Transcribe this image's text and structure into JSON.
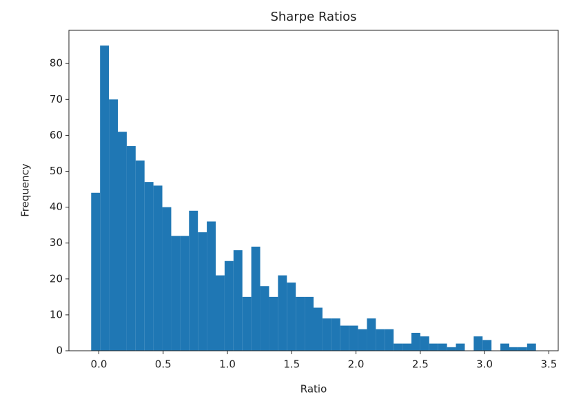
{
  "chart_data": {
    "type": "histogram",
    "title": "Sharpe Ratios",
    "x_label": "Ratio",
    "y_label": "Frequency",
    "color": "#1f77b4",
    "bins": [
      -0.06,
      0.0092,
      0.0784,
      0.1476,
      0.2168,
      0.286,
      0.3552,
      0.4244,
      0.4936,
      0.5628,
      0.632,
      0.7012,
      0.7704,
      0.8396,
      0.9088,
      0.978,
      1.0472,
      1.1164,
      1.1856,
      1.2548,
      1.324,
      1.3932,
      1.4624,
      1.5316,
      1.6008,
      1.67,
      1.7392,
      1.8084,
      1.8776,
      1.9468,
      2.016,
      2.0852,
      2.1544,
      2.2236,
      2.2928,
      2.362,
      2.4312,
      2.5004,
      2.5696,
      2.6388,
      2.708,
      2.7772,
      2.8464,
      2.9156,
      2.9848,
      3.054,
      3.1232,
      3.1924,
      3.2616,
      3.3308,
      3.4
    ],
    "values": [
      44,
      85,
      70,
      61,
      57,
      53,
      47,
      46,
      40,
      32,
      32,
      39,
      33,
      36,
      21,
      25,
      28,
      15,
      29,
      18,
      15,
      21,
      19,
      15,
      15,
      12,
      9,
      9,
      7,
      7,
      6,
      9,
      6,
      6,
      2,
      2,
      5,
      4,
      2,
      2,
      1,
      2,
      0,
      4,
      3,
      0,
      2,
      1,
      1,
      2
    ],
    "xlim": [
      -0.233,
      3.573
    ],
    "ylim": [
      0,
      89.25
    ],
    "xticks": [
      {
        "value": 0,
        "label": "0.0"
      },
      {
        "value": 0.5,
        "label": "0.5"
      },
      {
        "value": 1,
        "label": "1.0"
      },
      {
        "value": 1.5,
        "label": "1.5"
      },
      {
        "value": 2,
        "label": "2.0"
      },
      {
        "value": 2.5,
        "label": "2.5"
      },
      {
        "value": 3,
        "label": "3.0"
      },
      {
        "value": 3.5,
        "label": "3.5"
      }
    ],
    "yticks": [
      0,
      10,
      20,
      30,
      40,
      50,
      60,
      70,
      80
    ],
    "grid": false
  }
}
